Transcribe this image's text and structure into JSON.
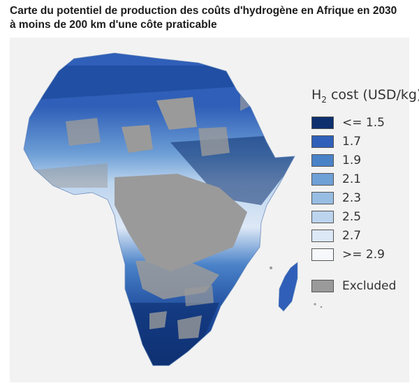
{
  "title": "Carte du potentiel de production des coûts d'hydrogène en Afrique en 2030 à moins de 200 km d'une côte praticable",
  "map": {
    "subject": "Africa",
    "legend": {
      "title_main": "H",
      "title_sub": "2",
      "title_rest": " cost (USD/kg)",
      "items": [
        {
          "label": "<= 1.5",
          "color": "#0d2f6e"
        },
        {
          "label": "1.7",
          "color": "#2f5fb8"
        },
        {
          "label": "1.9",
          "color": "#4a82c8"
        },
        {
          "label": "2.1",
          "color": "#6fa0d6"
        },
        {
          "label": "2.3",
          "color": "#97bde3"
        },
        {
          "label": "2.5",
          "color": "#bcd4ee"
        },
        {
          "label": "2.7",
          "color": "#dde8f6"
        },
        {
          "label": ">= 2.9",
          "color": "#f6f8fc"
        }
      ],
      "excluded": {
        "label": "Excluded",
        "color": "#9a9a9a"
      }
    }
  }
}
